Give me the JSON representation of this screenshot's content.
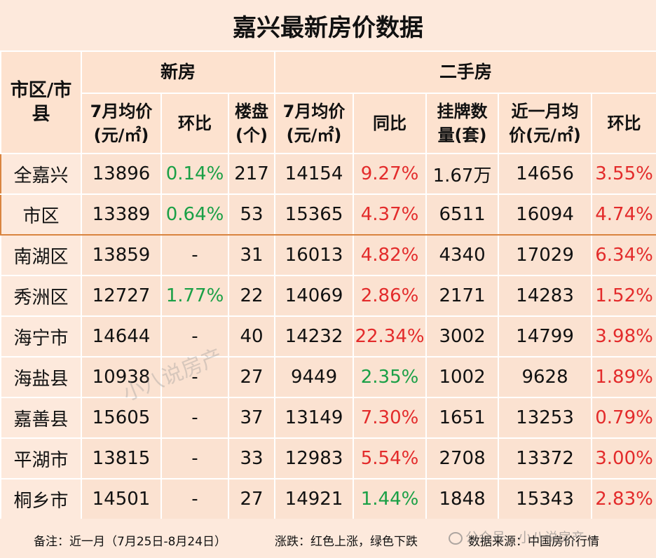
{
  "title": "嘉兴最新房价数据",
  "headers": {
    "region": "市区/市县",
    "new_house": "新房",
    "second_hand": "二手房",
    "new_cols": [
      "7月均价(元/㎡)",
      "环比",
      "楼盘(个)"
    ],
    "second_cols": [
      "7月均价(元/㎡)",
      "同比",
      "挂牌数量(套)",
      "近一月均价(元/㎡)",
      "环比"
    ]
  },
  "rows": [
    {
      "name": "全嘉兴",
      "new_price": "13896",
      "new_mom": "0.14%",
      "new_mom_trend": "down",
      "projects": "217",
      "sh_price": "14154",
      "sh_yoy": "9.27%",
      "sh_yoy_trend": "up",
      "listings": "1.67万",
      "month_price": "14656",
      "sh_mom": "3.55%",
      "sh_mom_trend": "up"
    },
    {
      "name": "市区",
      "new_price": "13389",
      "new_mom": "0.64%",
      "new_mom_trend": "down",
      "projects": "53",
      "sh_price": "15365",
      "sh_yoy": "4.37%",
      "sh_yoy_trend": "up",
      "listings": "6511",
      "month_price": "16094",
      "sh_mom": "4.74%",
      "sh_mom_trend": "up"
    },
    {
      "name": "南湖区",
      "new_price": "13859",
      "new_mom": "-",
      "new_mom_trend": "none",
      "projects": "31",
      "sh_price": "16013",
      "sh_yoy": "4.82%",
      "sh_yoy_trend": "up",
      "listings": "4340",
      "month_price": "17029",
      "sh_mom": "6.34%",
      "sh_mom_trend": "up"
    },
    {
      "name": "秀洲区",
      "new_price": "12727",
      "new_mom": "1.77%",
      "new_mom_trend": "down",
      "projects": "22",
      "sh_price": "14069",
      "sh_yoy": "2.86%",
      "sh_yoy_trend": "up",
      "listings": "2171",
      "month_price": "14283",
      "sh_mom": "1.52%",
      "sh_mom_trend": "up"
    },
    {
      "name": "海宁市",
      "new_price": "14644",
      "new_mom": "-",
      "new_mom_trend": "none",
      "projects": "40",
      "sh_price": "14232",
      "sh_yoy": "22.34%",
      "sh_yoy_trend": "up",
      "listings": "3002",
      "month_price": "14799",
      "sh_mom": "3.98%",
      "sh_mom_trend": "up"
    },
    {
      "name": "海盐县",
      "new_price": "10938",
      "new_mom": "-",
      "new_mom_trend": "none",
      "projects": "27",
      "sh_price": "9449",
      "sh_yoy": "2.35%",
      "sh_yoy_trend": "down",
      "listings": "1002",
      "month_price": "9628",
      "sh_mom": "1.89%",
      "sh_mom_trend": "up"
    },
    {
      "name": "嘉善县",
      "new_price": "15605",
      "new_mom": "-",
      "new_mom_trend": "none",
      "projects": "37",
      "sh_price": "13149",
      "sh_yoy": "7.30%",
      "sh_yoy_trend": "up",
      "listings": "1651",
      "month_price": "13253",
      "sh_mom": "0.79%",
      "sh_mom_trend": "up"
    },
    {
      "name": "平湖市",
      "new_price": "13815",
      "new_mom": "-",
      "new_mom_trend": "none",
      "projects": "33",
      "sh_price": "12983",
      "sh_yoy": "5.54%",
      "sh_yoy_trend": "up",
      "listings": "2708",
      "month_price": "13372",
      "sh_mom": "3.00%",
      "sh_mom_trend": "up"
    },
    {
      "name": "桐乡市",
      "new_price": "14501",
      "new_mom": "-",
      "new_mom_trend": "none",
      "projects": "27",
      "sh_price": "14921",
      "sh_yoy": "1.44%",
      "sh_yoy_trend": "down",
      "listings": "1848",
      "month_price": "15343",
      "sh_mom": "2.83%",
      "sh_mom_trend": "up"
    }
  ],
  "footer": {
    "note": "备注：近一月（7月25日-8月24日）",
    "legend": "涨跌：红色上涨，绿色下跌",
    "source": "数据来源：中国房价行情"
  },
  "watermark": {
    "center": "小八说房产",
    "corner": "公众号 · 小八说房产"
  },
  "colors": {
    "up": "#e32b2b",
    "down": "#1aa046",
    "highlight_border": "#d9843f"
  }
}
